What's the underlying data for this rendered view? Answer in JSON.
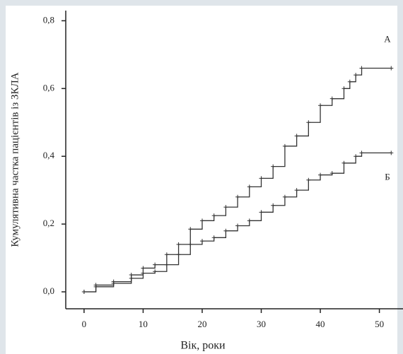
{
  "chart_data": {
    "type": "step",
    "x_label": "Вік, роки",
    "y_label": "Кумулятивна частка пацієнтів із ЗКЛА",
    "xlim": [
      -3.1,
      54
    ],
    "xticks": [
      0,
      10,
      20,
      30,
      40,
      50
    ],
    "ylim": [
      -0.05,
      0.83
    ],
    "yticks": [
      {
        "value": 0,
        "label": "0,0"
      },
      {
        "value": 0.2,
        "label": "0,2"
      },
      {
        "value": 0.4,
        "label": "0,4"
      },
      {
        "value": 0.6,
        "label": "0,6"
      },
      {
        "value": 0.8,
        "label": "0,8"
      }
    ],
    "series": [
      {
        "name": "А",
        "color": "#333333",
        "x": [
          0,
          2,
          5,
          8,
          10,
          12,
          14,
          16,
          18,
          20,
          22,
          24,
          26,
          28,
          30,
          32,
          34,
          36,
          38,
          40,
          42,
          44,
          45,
          46,
          47,
          52
        ],
        "values": [
          0,
          0.02,
          0.03,
          0.05,
          0.07,
          0.08,
          0.11,
          0.14,
          0.185,
          0.21,
          0.225,
          0.25,
          0.28,
          0.31,
          0.335,
          0.37,
          0.43,
          0.46,
          0.5,
          0.55,
          0.57,
          0.6,
          0.62,
          0.64,
          0.66,
          0.66
        ]
      },
      {
        "name": "Б",
        "color": "#333333",
        "x": [
          0,
          2,
          5,
          8,
          10,
          12,
          14,
          16,
          18,
          20,
          22,
          24,
          26,
          28,
          30,
          32,
          34,
          36,
          38,
          40,
          42,
          44,
          46,
          47,
          52
        ],
        "values": [
          0,
          0.015,
          0.025,
          0.04,
          0.055,
          0.06,
          0.08,
          0.11,
          0.14,
          0.15,
          0.16,
          0.18,
          0.195,
          0.21,
          0.235,
          0.255,
          0.28,
          0.3,
          0.33,
          0.345,
          0.35,
          0.38,
          0.4,
          0.41,
          0.41
        ]
      }
    ]
  }
}
